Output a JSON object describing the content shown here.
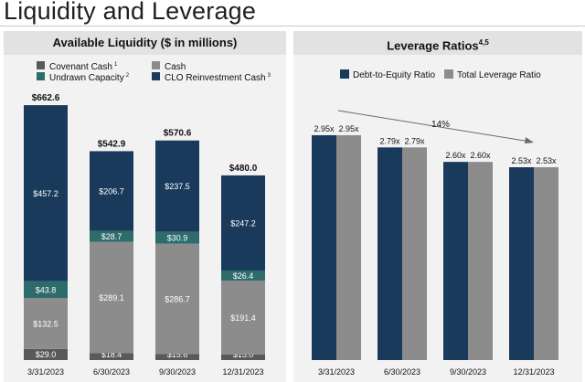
{
  "page": {
    "title": "Liquidity and Leverage"
  },
  "chart_data": [
    {
      "type": "bar",
      "stacked": true,
      "title": "Available Liquidity ($ in millions)",
      "categories": [
        "3/31/2023",
        "6/30/2023",
        "9/30/2023",
        "12/31/2023"
      ],
      "series": [
        {
          "name": "Covenant Cash",
          "footnote": "1",
          "color": "#595959",
          "values": [
            29.0,
            18.4,
            15.6,
            15.0
          ],
          "labels": [
            "$29.0",
            "$18.4",
            "$15.6",
            "$15.0"
          ]
        },
        {
          "name": "Cash",
          "footnote": "",
          "color": "#8c8c8c",
          "values": [
            132.5,
            289.1,
            286.7,
            191.4
          ],
          "labels": [
            "$132.5",
            "$289.1",
            "$286.7",
            "$191.4"
          ]
        },
        {
          "name": "Undrawn Capacity",
          "footnote": "2",
          "color": "#2e6b6b",
          "values": [
            43.8,
            28.7,
            30.9,
            26.4
          ],
          "labels": [
            "$43.8",
            "$28.7",
            "$30.9",
            "$26.4"
          ]
        },
        {
          "name": "CLO Reinvestment Cash",
          "footnote": "3",
          "color": "#1a3a5c",
          "values": [
            457.2,
            206.7,
            237.5,
            247.2
          ],
          "labels": [
            "$457.2",
            "$206.7",
            "$237.5",
            "$247.2"
          ]
        }
      ],
      "totals": [
        662.6,
        542.9,
        570.6,
        480.0
      ],
      "total_labels": [
        "$662.6",
        "$542.9",
        "$570.6",
        "$480.0"
      ],
      "legend_placement": "top"
    },
    {
      "type": "bar",
      "title": "Leverage Ratios",
      "title_footnote": "4,5",
      "categories": [
        "3/31/2023",
        "6/30/2023",
        "9/30/2023",
        "12/31/2023"
      ],
      "series": [
        {
          "name": "Debt-to-Equity Ratio",
          "color": "#1a3a5c",
          "values": [
            2.95,
            2.79,
            2.6,
            2.53
          ],
          "labels": [
            "2.95x",
            "2.79x",
            "2.60x",
            "2.53x"
          ]
        },
        {
          "name": "Total Leverage Ratio",
          "color": "#8c8c8c",
          "values": [
            2.95,
            2.79,
            2.6,
            2.53
          ],
          "labels": [
            "2.95x",
            "2.79x",
            "2.60x",
            "2.53x"
          ]
        }
      ],
      "annotation": "14%",
      "legend_placement": "top"
    }
  ]
}
